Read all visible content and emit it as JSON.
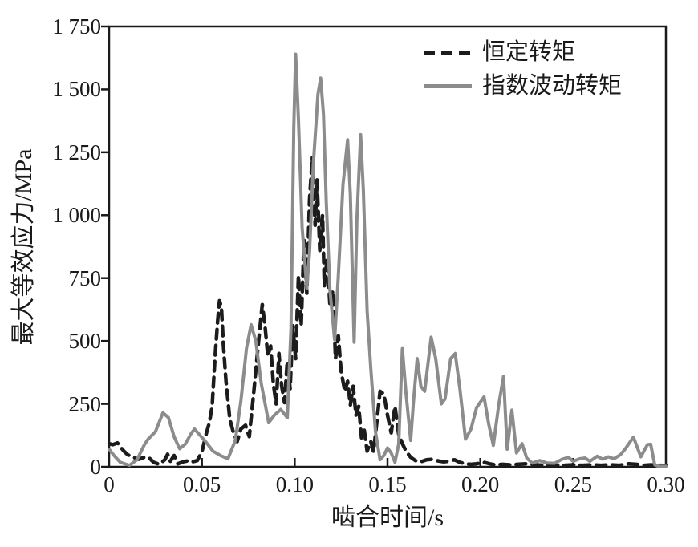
{
  "chart_data": {
    "type": "line",
    "title": "",
    "xlabel": "啮合时间/s",
    "ylabel": "最大等效应力/MPa",
    "xlim": [
      0,
      0.3
    ],
    "ylim": [
      0,
      1750
    ],
    "grid": false,
    "legend_position": "top-right-inside",
    "x_ticks": [
      0,
      0.05,
      0.1,
      0.15,
      0.2,
      0.25,
      0.3
    ],
    "x_tick_labels": [
      "0",
      "0.05",
      "0.10",
      "0.15",
      "0.20",
      "0.25",
      "0.30"
    ],
    "y_ticks": [
      0,
      250,
      500,
      750,
      1000,
      1250,
      1500,
      1750
    ],
    "y_tick_labels": [
      "0",
      "250",
      "500",
      "750",
      "1 000",
      "1 250",
      "1 500",
      "1 750"
    ],
    "axis_color": "#1a1a1a",
    "series": [
      {
        "name": "恒定转矩",
        "style": "dashed",
        "color": "#1c1c1c",
        "points": [
          [
            0,
            92
          ],
          [
            0.002,
            88
          ],
          [
            0.0045,
            95
          ],
          [
            0.006,
            80
          ],
          [
            0.008,
            62
          ],
          [
            0.01,
            48
          ],
          [
            0.013,
            38
          ],
          [
            0.016,
            30
          ],
          [
            0.019,
            38
          ],
          [
            0.0215,
            36
          ],
          [
            0.024,
            18
          ],
          [
            0.027,
            10
          ],
          [
            0.03,
            28
          ],
          [
            0.0315,
            50
          ],
          [
            0.033,
            22
          ],
          [
            0.035,
            45
          ],
          [
            0.037,
            12
          ],
          [
            0.04,
            20
          ],
          [
            0.0425,
            24
          ],
          [
            0.045,
            20
          ],
          [
            0.0475,
            25
          ],
          [
            0.05,
            60
          ],
          [
            0.0525,
            135
          ],
          [
            0.054,
            175
          ],
          [
            0.0555,
            240
          ],
          [
            0.057,
            430
          ],
          [
            0.0585,
            580
          ],
          [
            0.0595,
            660
          ],
          [
            0.0605,
            635
          ],
          [
            0.0615,
            490
          ],
          [
            0.063,
            340
          ],
          [
            0.065,
            190
          ],
          [
            0.067,
            135
          ],
          [
            0.069,
            100
          ],
          [
            0.071,
            150
          ],
          [
            0.0735,
            165
          ],
          [
            0.0755,
            120
          ],
          [
            0.078,
            300
          ],
          [
            0.08,
            460
          ],
          [
            0.0825,
            645
          ],
          [
            0.084,
            560
          ],
          [
            0.0855,
            440
          ],
          [
            0.087,
            480
          ],
          [
            0.0885,
            330
          ],
          [
            0.09,
            250
          ],
          [
            0.0915,
            450
          ],
          [
            0.093,
            320
          ],
          [
            0.0945,
            255
          ],
          [
            0.096,
            420
          ],
          [
            0.0975,
            310
          ],
          [
            0.099,
            560
          ],
          [
            0.1005,
            430
          ],
          [
            0.102,
            760
          ],
          [
            0.1035,
            560
          ],
          [
            0.105,
            900
          ],
          [
            0.1065,
            690
          ],
          [
            0.108,
            1060
          ],
          [
            0.1095,
            1230
          ],
          [
            0.111,
            960
          ],
          [
            0.112,
            1140
          ],
          [
            0.1135,
            860
          ],
          [
            0.115,
            1000
          ],
          [
            0.116,
            720
          ],
          [
            0.1175,
            830
          ],
          [
            0.119,
            640
          ],
          [
            0.1205,
            700
          ],
          [
            0.122,
            430
          ],
          [
            0.1235,
            520
          ],
          [
            0.125,
            380
          ],
          [
            0.127,
            300
          ],
          [
            0.1285,
            340
          ],
          [
            0.13,
            245
          ],
          [
            0.1315,
            320
          ],
          [
            0.133,
            205
          ],
          [
            0.1345,
            240
          ],
          [
            0.136,
            115
          ],
          [
            0.1375,
            145
          ],
          [
            0.139,
            62
          ],
          [
            0.141,
            100
          ],
          [
            0.1425,
            60
          ],
          [
            0.144,
            160
          ],
          [
            0.146,
            300
          ],
          [
            0.148,
            290
          ],
          [
            0.15,
            205
          ],
          [
            0.152,
            135
          ],
          [
            0.154,
            240
          ],
          [
            0.156,
            130
          ],
          [
            0.158,
            92
          ],
          [
            0.16,
            62
          ],
          [
            0.1625,
            38
          ],
          [
            0.165,
            25
          ],
          [
            0.168,
            20
          ],
          [
            0.171,
            28
          ],
          [
            0.174,
            30
          ],
          [
            0.177,
            24
          ],
          [
            0.18,
            20
          ],
          [
            0.183,
            22
          ],
          [
            0.186,
            28
          ],
          [
            0.189,
            18
          ],
          [
            0.192,
            12
          ],
          [
            0.195,
            10
          ],
          [
            0.198,
            12
          ],
          [
            0.202,
            18
          ],
          [
            0.205,
            12
          ],
          [
            0.208,
            8
          ],
          [
            0.212,
            10
          ],
          [
            0.216,
            8
          ],
          [
            0.22,
            10
          ],
          [
            0.225,
            12
          ],
          [
            0.23,
            8
          ],
          [
            0.235,
            6
          ],
          [
            0.24,
            8
          ],
          [
            0.245,
            6
          ],
          [
            0.25,
            8
          ],
          [
            0.255,
            6
          ],
          [
            0.26,
            8
          ],
          [
            0.265,
            6
          ],
          [
            0.27,
            8
          ],
          [
            0.275,
            6
          ],
          [
            0.28,
            12
          ],
          [
            0.284,
            10
          ],
          [
            0.288,
            6
          ],
          [
            0.292,
            8
          ],
          [
            0.296,
            6
          ],
          [
            0.3,
            5
          ]
        ]
      },
      {
        "name": "指数波动转矩",
        "style": "solid",
        "color": "#8c8c8c",
        "points": [
          [
            0,
            70
          ],
          [
            0.003,
            42
          ],
          [
            0.006,
            18
          ],
          [
            0.011,
            6
          ],
          [
            0.015,
            28
          ],
          [
            0.019,
            88
          ],
          [
            0.021,
            110
          ],
          [
            0.025,
            140
          ],
          [
            0.029,
            215
          ],
          [
            0.032,
            195
          ],
          [
            0.035,
            120
          ],
          [
            0.038,
            72
          ],
          [
            0.041,
            90
          ],
          [
            0.044,
            130
          ],
          [
            0.046,
            150
          ],
          [
            0.049,
            125
          ],
          [
            0.052,
            100
          ],
          [
            0.056,
            62
          ],
          [
            0.06,
            45
          ],
          [
            0.064,
            32
          ],
          [
            0.068,
            105
          ],
          [
            0.071,
            260
          ],
          [
            0.074,
            470
          ],
          [
            0.0765,
            565
          ],
          [
            0.079,
            500
          ],
          [
            0.082,
            330
          ],
          [
            0.086,
            175
          ],
          [
            0.089,
            205
          ],
          [
            0.0925,
            228
          ],
          [
            0.096,
            195
          ],
          [
            0.098,
            550
          ],
          [
            0.0995,
            1350
          ],
          [
            0.1005,
            1640
          ],
          [
            0.102,
            1380
          ],
          [
            0.104,
            950
          ],
          [
            0.1065,
            710
          ],
          [
            0.108,
            850
          ],
          [
            0.11,
            1200
          ],
          [
            0.1125,
            1480
          ],
          [
            0.114,
            1545
          ],
          [
            0.1155,
            1400
          ],
          [
            0.117,
            1050
          ],
          [
            0.119,
            700
          ],
          [
            0.1215,
            505
          ],
          [
            0.1235,
            760
          ],
          [
            0.126,
            1120
          ],
          [
            0.1285,
            1300
          ],
          [
            0.13,
            1080
          ],
          [
            0.132,
            495
          ],
          [
            0.1335,
            980
          ],
          [
            0.1355,
            1320
          ],
          [
            0.137,
            1100
          ],
          [
            0.139,
            620
          ],
          [
            0.141,
            390
          ],
          [
            0.1435,
            140
          ],
          [
            0.146,
            28
          ],
          [
            0.148,
            45
          ],
          [
            0.15,
            75
          ],
          [
            0.152,
            55
          ],
          [
            0.154,
            18
          ],
          [
            0.156,
            90
          ],
          [
            0.158,
            470
          ],
          [
            0.16,
            290
          ],
          [
            0.1625,
            105
          ],
          [
            0.164,
            260
          ],
          [
            0.166,
            430
          ],
          [
            0.168,
            320
          ],
          [
            0.17,
            300
          ],
          [
            0.1735,
            515
          ],
          [
            0.176,
            430
          ],
          [
            0.179,
            250
          ],
          [
            0.181,
            270
          ],
          [
            0.184,
            430
          ],
          [
            0.1865,
            450
          ],
          [
            0.189,
            310
          ],
          [
            0.192,
            110
          ],
          [
            0.195,
            150
          ],
          [
            0.198,
            235
          ],
          [
            0.202,
            278
          ],
          [
            0.2045,
            170
          ],
          [
            0.207,
            85
          ],
          [
            0.21,
            250
          ],
          [
            0.2125,
            360
          ],
          [
            0.2145,
            70
          ],
          [
            0.217,
            225
          ],
          [
            0.2195,
            55
          ],
          [
            0.2225,
            92
          ],
          [
            0.225,
            35
          ],
          [
            0.228,
            15
          ],
          [
            0.232,
            25
          ],
          [
            0.236,
            15
          ],
          [
            0.24,
            14
          ],
          [
            0.244,
            30
          ],
          [
            0.2475,
            38
          ],
          [
            0.25,
            22
          ],
          [
            0.2535,
            32
          ],
          [
            0.2565,
            35
          ],
          [
            0.259,
            22
          ],
          [
            0.263,
            42
          ],
          [
            0.266,
            30
          ],
          [
            0.269,
            40
          ],
          [
            0.272,
            32
          ],
          [
            0.2755,
            48
          ],
          [
            0.278,
            70
          ],
          [
            0.2825,
            118
          ],
          [
            0.2865,
            40
          ],
          [
            0.29,
            88
          ],
          [
            0.2918,
            90
          ],
          [
            0.294,
            8
          ],
          [
            0.296,
            2
          ],
          [
            0.3,
            2
          ]
        ]
      }
    ]
  }
}
